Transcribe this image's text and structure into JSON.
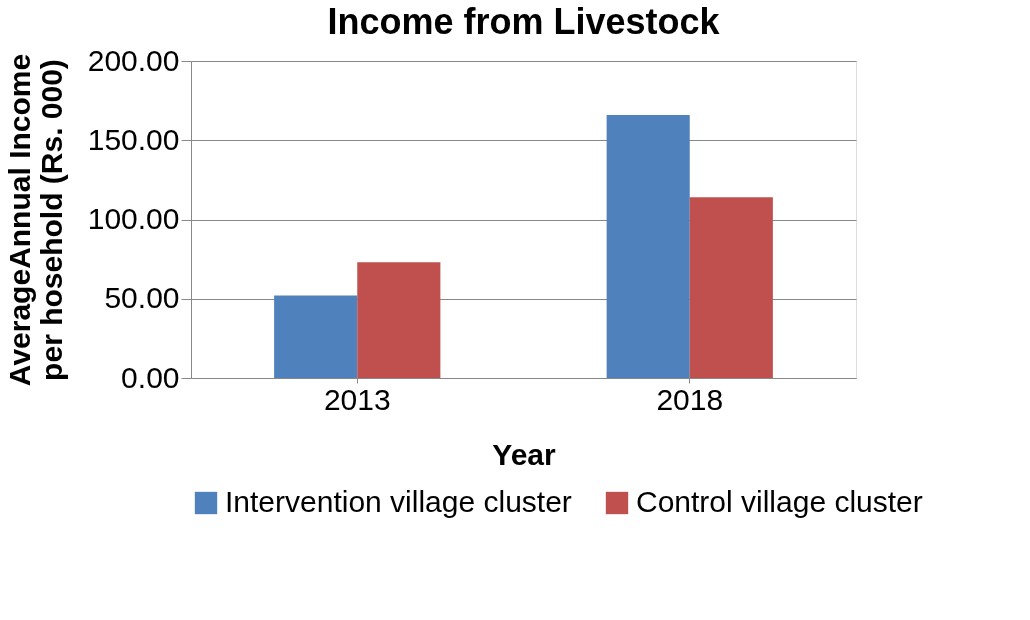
{
  "chart_data": {
    "type": "bar",
    "title": "Income from Livestock",
    "xlabel": "Year",
    "ylabel": "AverageAnnual Income\nper hosehold (Rs. 000)",
    "categories": [
      "2013",
      "2018"
    ],
    "series": [
      {
        "name": "Intervention village cluster",
        "color": "#4f81bd",
        "values": [
          52,
          166
        ]
      },
      {
        "name": "Control village cluster",
        "color": "#c0504d",
        "values": [
          73,
          114
        ]
      }
    ],
    "ylim": [
      0,
      200
    ],
    "yticks": [
      {
        "value": 0,
        "label": "0.00"
      },
      {
        "value": 50,
        "label": "50.00"
      },
      {
        "value": 100,
        "label": "100.00"
      },
      {
        "value": 150,
        "label": "150.00"
      },
      {
        "value": 200,
        "label": "200.00"
      }
    ],
    "grid": "y",
    "legend": "bottom"
  }
}
